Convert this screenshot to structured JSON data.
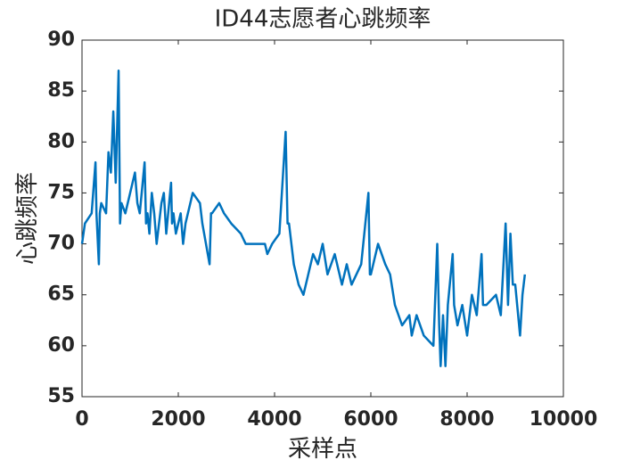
{
  "chart_data": {
    "type": "line",
    "title": "ID44志愿者心跳频率",
    "xlabel": "采样点",
    "ylabel": "心跳频率",
    "x": [
      0,
      60,
      200,
      280,
      300,
      350,
      370,
      400,
      500,
      550,
      600,
      650,
      700,
      760,
      790,
      820,
      900,
      1000,
      1100,
      1150,
      1200,
      1300,
      1330,
      1360,
      1400,
      1450,
      1500,
      1550,
      1650,
      1700,
      1750,
      1850,
      1870,
      1900,
      1950,
      2050,
      2100,
      2150,
      2300,
      2450,
      2500,
      2650,
      2680,
      2700,
      2850,
      2950,
      3100,
      3300,
      3400,
      3800,
      3850,
      3950,
      4100,
      4230,
      4270,
      4300,
      4400,
      4500,
      4600,
      4700,
      4800,
      4900,
      5000,
      5100,
      5250,
      5400,
      5500,
      5600,
      5800,
      5950,
      5980,
      6000,
      6150,
      6300,
      6400,
      6500,
      6650,
      6800,
      6850,
      6950,
      7100,
      7300,
      7380,
      7420,
      7450,
      7500,
      7550,
      7600,
      7700,
      7730,
      7800,
      7900,
      8000,
      8100,
      8200,
      8300,
      8330,
      8400,
      8600,
      8700,
      8800,
      8850,
      8900,
      8950,
      9000,
      9100,
      9150,
      9200
    ],
    "series": [
      {
        "name": "心跳频率",
        "color": "#0072bd",
        "values": [
          70,
          72,
          73,
          78,
          73,
          68,
          73,
          74,
          73,
          79,
          77,
          83,
          76,
          87,
          72,
          74,
          73,
          75,
          77,
          74,
          73,
          78,
          72,
          73,
          71,
          75,
          73,
          70,
          74,
          75,
          71,
          76,
          72,
          73,
          71,
          73,
          70,
          72,
          75,
          74,
          72,
          68,
          73,
          73,
          74,
          73,
          72,
          71,
          70,
          70,
          69,
          70,
          71,
          81,
          72,
          72,
          68,
          66,
          65,
          67,
          69,
          68,
          70,
          67,
          69,
          66,
          68,
          66,
          68,
          75,
          67,
          67,
          70,
          68,
          67,
          64,
          62,
          63,
          61,
          63,
          61,
          60,
          70,
          62,
          58,
          63,
          58,
          64,
          69,
          64,
          62,
          64,
          61,
          65,
          63,
          69,
          64,
          64,
          65,
          63,
          72,
          64,
          71,
          66,
          66,
          61,
          65,
          67
        ]
      }
    ],
    "xlim": [
      0,
      10000
    ],
    "xticks": [
      0,
      2000,
      4000,
      6000,
      8000,
      10000
    ],
    "ylim": [
      55,
      90
    ],
    "yticks": [
      55,
      60,
      65,
      70,
      75,
      80,
      85,
      90
    ]
  }
}
